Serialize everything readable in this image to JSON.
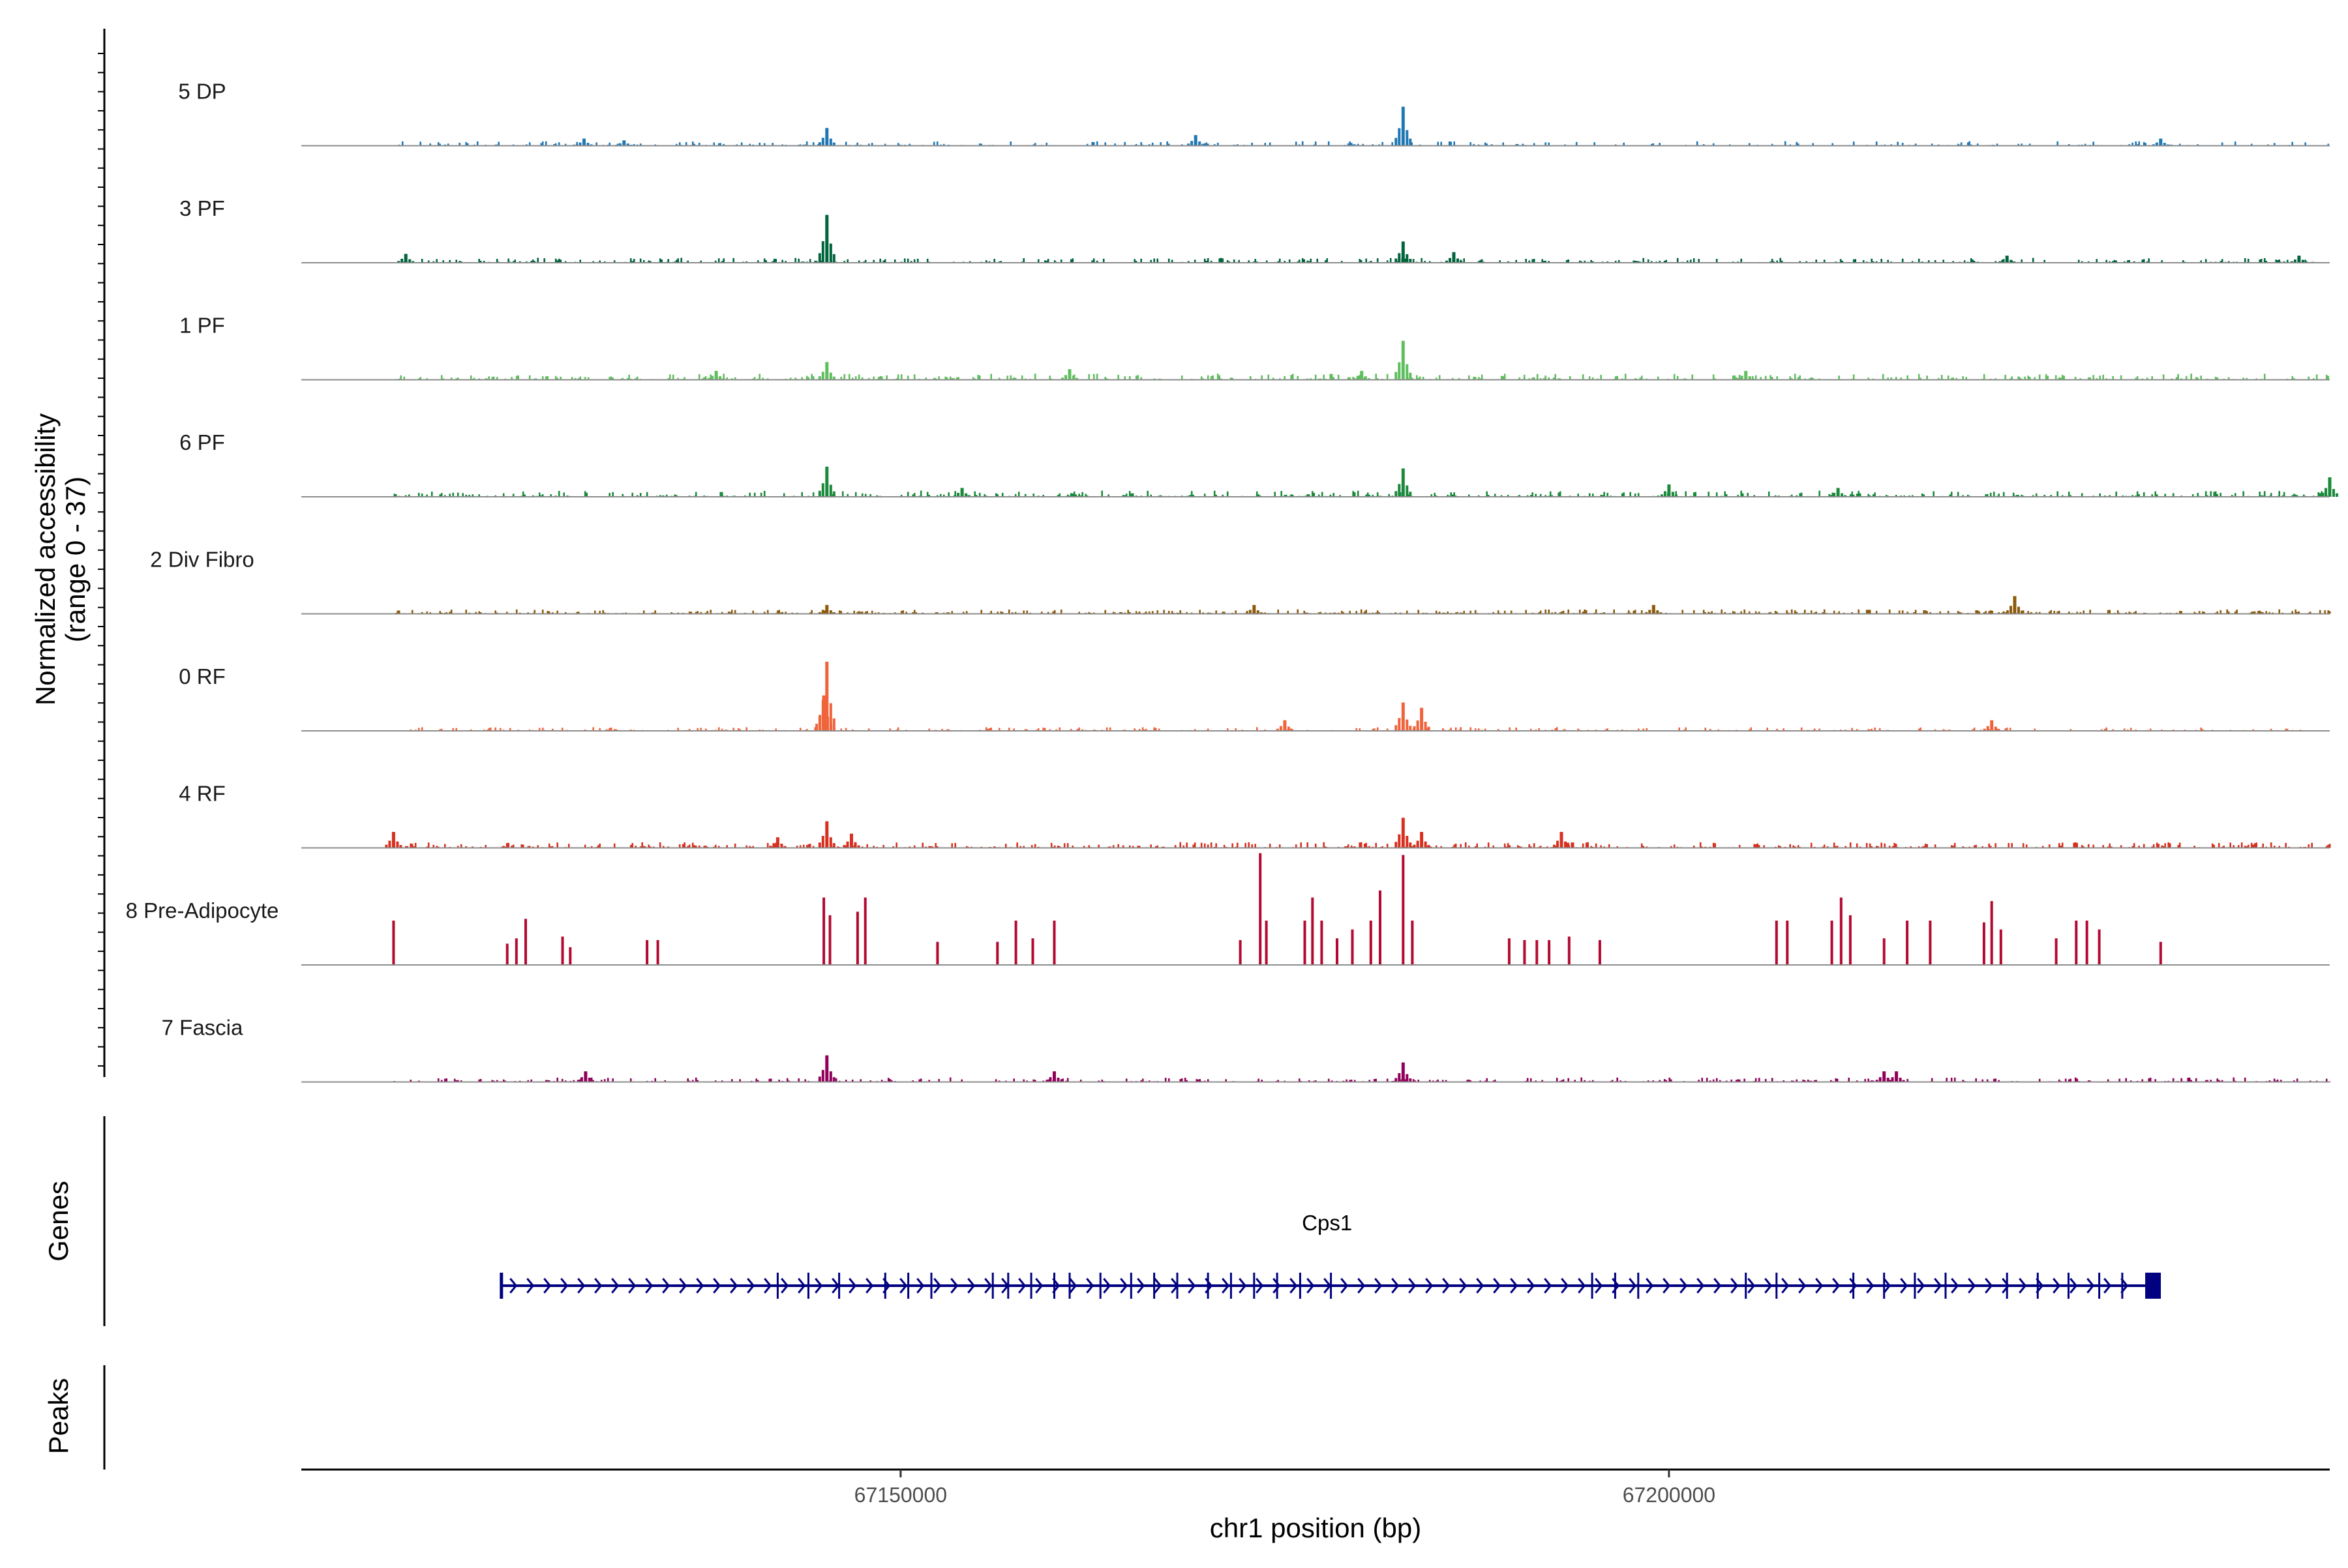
{
  "chart_data": {
    "type": "genome-coverage",
    "title": "",
    "ylabel_line1": "Normalized accessibility",
    "ylabel_line2": "(range 0 - 37)",
    "yrange": [
      0,
      37
    ],
    "xlabel": "chr1 position (bp)",
    "xlim": [
      67111000,
      67243000
    ],
    "x_ticks": [
      67150000,
      67200000
    ],
    "x_tick_labels": [
      "67150000",
      "67200000"
    ],
    "tracks": [
      {
        "name": "5 DP",
        "color": "#1f78b4",
        "density": 0.42,
        "scale": 0.55,
        "peaks": [
          {
            "x": 67145200,
            "h": 10
          },
          {
            "x": 67182700,
            "h": 22
          },
          {
            "x": 67129400,
            "h": 4
          },
          {
            "x": 67169200,
            "h": 6
          },
          {
            "x": 67132000,
            "h": 3
          },
          {
            "x": 67232000,
            "h": 4
          }
        ]
      },
      {
        "name": "3 PF",
        "color": "#00643c",
        "density": 0.62,
        "scale": 0.6,
        "peaks": [
          {
            "x": 67145200,
            "h": 27
          },
          {
            "x": 67182700,
            "h": 12
          },
          {
            "x": 67117800,
            "h": 5
          },
          {
            "x": 67186000,
            "h": 6
          },
          {
            "x": 67222000,
            "h": 4
          },
          {
            "x": 67241000,
            "h": 4
          }
        ]
      },
      {
        "name": "1 PF",
        "color": "#5fbf5f",
        "density": 0.6,
        "scale": 0.75,
        "peaks": [
          {
            "x": 67182700,
            "h": 22
          },
          {
            "x": 67145200,
            "h": 10
          },
          {
            "x": 67161000,
            "h": 6
          },
          {
            "x": 67180000,
            "h": 5
          },
          {
            "x": 67138000,
            "h": 5
          },
          {
            "x": 67205000,
            "h": 5
          }
        ]
      },
      {
        "name": "6 PF",
        "color": "#1b8a3c",
        "density": 0.58,
        "scale": 0.75,
        "peaks": [
          {
            "x": 67145200,
            "h": 17
          },
          {
            "x": 67182700,
            "h": 16
          },
          {
            "x": 67200000,
            "h": 7
          },
          {
            "x": 67243000,
            "h": 11
          },
          {
            "x": 67154000,
            "h": 5
          },
          {
            "x": 67211000,
            "h": 5
          }
        ]
      },
      {
        "name": "2 Div Fibro",
        "color": "#8c5a0a",
        "density": 0.72,
        "scale": 0.55,
        "peaks": [
          {
            "x": 67222500,
            "h": 10
          },
          {
            "x": 67173000,
            "h": 5
          },
          {
            "x": 67145200,
            "h": 5
          },
          {
            "x": 67199000,
            "h": 5
          }
        ]
      },
      {
        "name": "0 RF",
        "color": "#f0643c",
        "density": 0.5,
        "scale": 0.45,
        "peaks": [
          {
            "x": 67145200,
            "h": 39
          },
          {
            "x": 67145000,
            "h": 20
          },
          {
            "x": 67182700,
            "h": 16
          },
          {
            "x": 67183900,
            "h": 13
          },
          {
            "x": 67175000,
            "h": 6
          },
          {
            "x": 67221000,
            "h": 6
          }
        ]
      },
      {
        "name": "4 RF",
        "color": "#d7301f",
        "density": 0.65,
        "scale": 0.7,
        "peaks": [
          {
            "x": 67145200,
            "h": 15
          },
          {
            "x": 67182700,
            "h": 17
          },
          {
            "x": 67117000,
            "h": 9
          },
          {
            "x": 67193000,
            "h": 9
          },
          {
            "x": 67183900,
            "h": 9
          },
          {
            "x": 67146800,
            "h": 8
          },
          {
            "x": 67142000,
            "h": 6
          }
        ]
      },
      {
        "name": "8 Pre-Adipocyte",
        "color": "#b40a32",
        "density": 0.0,
        "scale": 0.0,
        "peaks": [
          {
            "x": 67117000,
            "h": 25
          },
          {
            "x": 67125000,
            "h": 15
          },
          {
            "x": 67125600,
            "h": 26
          },
          {
            "x": 67124400,
            "h": 12
          },
          {
            "x": 67128000,
            "h": 16
          },
          {
            "x": 67128500,
            "h": 10
          },
          {
            "x": 67133500,
            "h": 14
          },
          {
            "x": 67134200,
            "h": 14
          },
          {
            "x": 67145000,
            "h": 38
          },
          {
            "x": 67145400,
            "h": 28
          },
          {
            "x": 67147200,
            "h": 30
          },
          {
            "x": 67147700,
            "h": 38
          },
          {
            "x": 67152400,
            "h": 13
          },
          {
            "x": 67156300,
            "h": 13
          },
          {
            "x": 67157500,
            "h": 25
          },
          {
            "x": 67158600,
            "h": 15
          },
          {
            "x": 67160000,
            "h": 25
          },
          {
            "x": 67172100,
            "h": 14
          },
          {
            "x": 67173400,
            "h": 63
          },
          {
            "x": 67173800,
            "h": 25
          },
          {
            "x": 67176300,
            "h": 25
          },
          {
            "x": 67176800,
            "h": 38
          },
          {
            "x": 67177400,
            "h": 25
          },
          {
            "x": 67178400,
            "h": 15
          },
          {
            "x": 67179400,
            "h": 20
          },
          {
            "x": 67180600,
            "h": 25
          },
          {
            "x": 67181200,
            "h": 42
          },
          {
            "x": 67182700,
            "h": 62
          },
          {
            "x": 67183300,
            "h": 25
          },
          {
            "x": 67189600,
            "h": 15
          },
          {
            "x": 67190600,
            "h": 14
          },
          {
            "x": 67191400,
            "h": 14
          },
          {
            "x": 67192200,
            "h": 14
          },
          {
            "x": 67193500,
            "h": 16
          },
          {
            "x": 67195500,
            "h": 14
          },
          {
            "x": 67207000,
            "h": 25
          },
          {
            "x": 67207700,
            "h": 25
          },
          {
            "x": 67210600,
            "h": 25
          },
          {
            "x": 67211200,
            "h": 38
          },
          {
            "x": 67211800,
            "h": 28
          },
          {
            "x": 67214000,
            "h": 15
          },
          {
            "x": 67215500,
            "h": 25
          },
          {
            "x": 67217000,
            "h": 25
          },
          {
            "x": 67220500,
            "h": 24
          },
          {
            "x": 67221000,
            "h": 36
          },
          {
            "x": 67221600,
            "h": 20
          },
          {
            "x": 67225200,
            "h": 15
          },
          {
            "x": 67226500,
            "h": 25
          },
          {
            "x": 67227200,
            "h": 25
          },
          {
            "x": 67228000,
            "h": 20
          },
          {
            "x": 67232000,
            "h": 13
          }
        ]
      },
      {
        "name": "7 Fascia",
        "color": "#91005a",
        "density": 0.6,
        "scale": 0.55,
        "peaks": [
          {
            "x": 67145200,
            "h": 15
          },
          {
            "x": 67182700,
            "h": 11
          },
          {
            "x": 67129500,
            "h": 6
          },
          {
            "x": 67214000,
            "h": 6
          },
          {
            "x": 67214800,
            "h": 6
          },
          {
            "x": 67160000,
            "h": 6
          }
        ]
      }
    ],
    "genes_label": "Genes",
    "gene": {
      "name": "Cps1",
      "start": 67124000,
      "end": 67231500,
      "strand": "+",
      "color": "#000080",
      "exons": [
        67142000,
        67144000,
        67146000,
        67149000,
        67150500,
        67152000,
        67156000,
        67157000,
        67158500,
        67160000,
        67161000,
        67163000,
        67165000,
        67166500,
        67168000,
        67170000,
        67171500,
        67173000,
        67174500,
        67176000,
        67178000,
        67195000,
        67196500,
        67198000,
        67205000,
        67207000,
        67212000,
        67214000,
        67216000,
        67218000,
        67222000,
        67224000,
        67226000,
        67228000,
        67229500
      ]
    },
    "peaks_label": "Peaks"
  }
}
